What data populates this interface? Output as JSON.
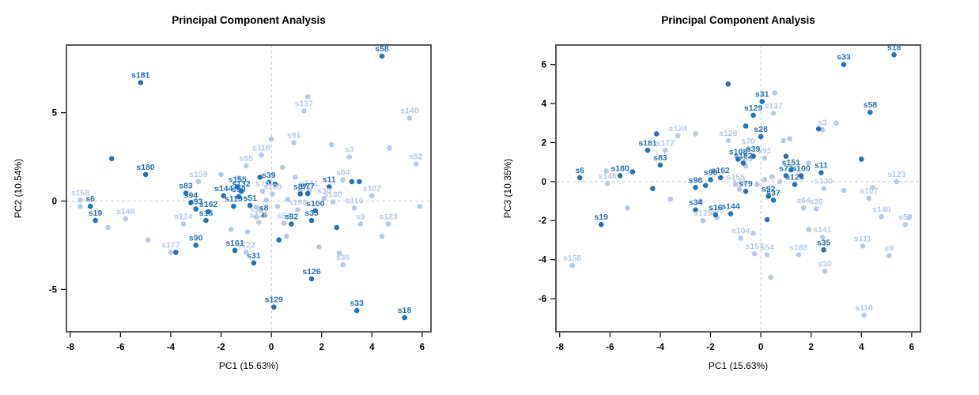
{
  "figure": {
    "background": "#ffffff"
  },
  "chart_data": [
    {
      "type": "scatter",
      "title": "Principal Component Analysis",
      "xlabel": "PC1 (15.63%)",
      "ylabel": "PC2 (10.54%)",
      "xlim": [
        -8.15,
        6.35
      ],
      "ylim": [
        -7.4,
        8.83
      ],
      "xticks": [
        -8,
        -6,
        -4,
        -2,
        0,
        2,
        4,
        6
      ],
      "yticks": [
        -5,
        0,
        5
      ],
      "zero_lines": "dashed at x=0 and y=0",
      "legend": "none",
      "colors": {
        "dark": "#2272b4",
        "light": "#b7c9e7",
        "dash": "#c9c9c9",
        "frame": "#58585a"
      },
      "points": [
        {
          "id": "s58",
          "x": 4.4,
          "y": 8.2,
          "g": "d"
        },
        {
          "id": "s181",
          "x": -5.2,
          "y": 6.7,
          "g": "d"
        },
        {
          "id": "s180",
          "x": -5.0,
          "y": 1.5,
          "g": "d"
        },
        {
          "id": "s83",
          "x": -3.4,
          "y": 0.45,
          "g": "d"
        },
        {
          "id": "s94",
          "x": -3.2,
          "y": -0.1,
          "g": "d"
        },
        {
          "id": "s93",
          "x": -3.0,
          "y": -0.45,
          "g": "d"
        },
        {
          "id": "s6",
          "x": -7.2,
          "y": -0.3,
          "g": "d"
        },
        {
          "id": "s19",
          "x": -7.0,
          "y": -1.1,
          "g": "d"
        },
        {
          "id": "s162",
          "x": -2.5,
          "y": -0.6,
          "g": "d"
        },
        {
          "id": "s16",
          "x": -2.6,
          "y": -1.1,
          "g": "d"
        },
        {
          "id": "s144",
          "x": -1.9,
          "y": 0.3,
          "g": "d"
        },
        {
          "id": "s119",
          "x": -1.5,
          "y": -0.3,
          "g": "d"
        },
        {
          "id": "s51",
          "x": -0.85,
          "y": -0.25,
          "g": "d"
        },
        {
          "id": "s155",
          "x": -1.35,
          "y": 0.8,
          "g": "d"
        },
        {
          "id": "s132",
          "x": -1.2,
          "y": 0.55,
          "g": "d"
        },
        {
          "id": "s99",
          "x": -1.3,
          "y": 0.25,
          "g": "d"
        },
        {
          "id": "s39",
          "x": -0.1,
          "y": 1.05,
          "g": "d"
        },
        {
          "id": "s87",
          "x": 1.15,
          "y": 0.4,
          "g": "d"
        },
        {
          "id": "s77",
          "x": 1.45,
          "y": 0.42,
          "g": "d"
        },
        {
          "id": "s11",
          "x": 2.3,
          "y": 0.8,
          "g": "d"
        },
        {
          "id": "s100",
          "x": 1.75,
          "y": -0.55,
          "g": "d"
        },
        {
          "id": "s35",
          "x": 1.6,
          "y": -1.1,
          "g": "d"
        },
        {
          "id": "s92",
          "x": 0.8,
          "y": -1.3,
          "g": "d"
        },
        {
          "id": "s8",
          "x": -0.3,
          "y": -0.8,
          "g": "d"
        },
        {
          "id": "s90",
          "x": -3.0,
          "y": -2.5,
          "g": "d"
        },
        {
          "id": "s161",
          "x": -1.45,
          "y": -2.8,
          "g": "d"
        },
        {
          "id": "s31",
          "x": -0.7,
          "y": -3.5,
          "g": "d"
        },
        {
          "id": "s126",
          "x": 1.6,
          "y": -4.4,
          "g": "d"
        },
        {
          "id": "s129",
          "x": 0.1,
          "y": -6.0,
          "g": "d"
        },
        {
          "id": "s33",
          "x": 3.4,
          "y": -6.2,
          "g": "d"
        },
        {
          "id": "s18",
          "x": 5.3,
          "y": -6.6,
          "g": "d"
        },
        {
          "x": -6.35,
          "y": 2.4,
          "g": "d"
        },
        {
          "x": 3.2,
          "y": 1.1,
          "g": "d"
        },
        {
          "x": 3.5,
          "y": 1.1,
          "g": "d"
        },
        {
          "x": 0.3,
          "y": -2.2,
          "g": "d"
        },
        {
          "x": -3.8,
          "y": -2.9,
          "g": "d"
        },
        {
          "x": 2.6,
          "y": -1.5,
          "g": "d"
        },
        {
          "x": -0.45,
          "y": 1.35,
          "g": "d"
        },
        {
          "x": 0.15,
          "y": 0.95,
          "g": "d"
        },
        {
          "id": "s158",
          "x": -7.6,
          "y": 0.05,
          "g": "l"
        },
        {
          "id": "s148",
          "x": -5.8,
          "y": -1.0,
          "g": "l"
        },
        {
          "id": "s124",
          "x": -3.5,
          "y": -1.3,
          "g": "l"
        },
        {
          "id": "s177",
          "x": -4.0,
          "y": -2.9,
          "g": "l"
        },
        {
          "id": "s159",
          "x": -2.9,
          "y": 1.1,
          "g": "l"
        },
        {
          "id": "s118",
          "x": -0.4,
          "y": 2.6,
          "g": "l"
        },
        {
          "id": "s85",
          "x": -1.0,
          "y": 2.0,
          "g": "l"
        },
        {
          "id": "s137",
          "x": 1.3,
          "y": 5.1,
          "g": "l"
        },
        {
          "id": "s91",
          "x": 0.9,
          "y": 3.3,
          "g": "l"
        },
        {
          "id": "s140",
          "x": 5.5,
          "y": 4.7,
          "g": "l"
        },
        {
          "id": "s52",
          "x": 5.75,
          "y": 2.1,
          "g": "l"
        },
        {
          "id": "s3",
          "x": 3.1,
          "y": 2.5,
          "g": "l"
        },
        {
          "id": "s64",
          "x": 2.85,
          "y": 1.2,
          "g": "l"
        },
        {
          "id": "s107",
          "x": 4.0,
          "y": 0.3,
          "g": "l"
        },
        {
          "id": "s130",
          "x": 2.45,
          "y": -0.05,
          "g": "l"
        },
        {
          "id": "s30",
          "x": 2.1,
          "y": 0.15,
          "g": "l"
        },
        {
          "id": "s110",
          "x": 3.3,
          "y": -0.4,
          "g": "l"
        },
        {
          "id": "s9",
          "x": 3.55,
          "y": -1.3,
          "g": "l"
        },
        {
          "id": "s123",
          "x": 4.65,
          "y": -1.3,
          "g": "l"
        },
        {
          "id": "s188",
          "x": 1.05,
          "y": -0.5,
          "g": "l"
        },
        {
          "id": "s54",
          "x": 0.5,
          "y": -1.25,
          "g": "l"
        },
        {
          "id": "s128",
          "x": -0.5,
          "y": -1.2,
          "g": "l"
        },
        {
          "id": "s96",
          "x": -0.6,
          "y": -0.9,
          "g": "l"
        },
        {
          "id": "s122",
          "x": -1.0,
          "y": -2.9,
          "g": "l"
        },
        {
          "id": "s36",
          "x": 2.85,
          "y": -3.6,
          "g": "l"
        },
        {
          "id": "s70",
          "x": -0.35,
          "y": 0.55,
          "g": "l"
        },
        {
          "id": "s109",
          "x": 0.05,
          "y": 0.4,
          "g": "l"
        },
        {
          "id": "s141",
          "x": 1.5,
          "y": 0.6,
          "g": "l"
        },
        {
          "x": 1.45,
          "y": 5.9,
          "g": "l"
        },
        {
          "x": 0.0,
          "y": 3.5,
          "g": "l"
        },
        {
          "x": 2.4,
          "y": 3.2,
          "g": "l"
        },
        {
          "x": -2.0,
          "y": 1.5,
          "g": "l"
        },
        {
          "x": -7.6,
          "y": -0.3,
          "g": "l"
        },
        {
          "x": -6.5,
          "y": -1.5,
          "g": "l"
        },
        {
          "x": -4.9,
          "y": -2.2,
          "g": "l"
        },
        {
          "x": 0.45,
          "y": 1.9,
          "g": "l"
        },
        {
          "x": 0.95,
          "y": 1.35,
          "g": "l"
        },
        {
          "x": -0.2,
          "y": 0.05,
          "g": "l"
        },
        {
          "x": 0.25,
          "y": -0.3,
          "g": "l"
        },
        {
          "x": 0.65,
          "y": 0.1,
          "g": "l"
        },
        {
          "x": -0.6,
          "y": -0.35,
          "g": "l"
        },
        {
          "x": -1.6,
          "y": -1.6,
          "g": "l"
        },
        {
          "x": -0.95,
          "y": -1.75,
          "g": "l"
        },
        {
          "x": 0.6,
          "y": -2.0,
          "g": "l"
        },
        {
          "x": 1.9,
          "y": -2.6,
          "g": "l"
        },
        {
          "x": 2.7,
          "y": -2.95,
          "g": "l"
        },
        {
          "x": 4.4,
          "y": -2.0,
          "g": "l"
        },
        {
          "x": 5.9,
          "y": -0.3,
          "g": "l"
        },
        {
          "x": 4.7,
          "y": 3.0,
          "g": "l"
        },
        {
          "x": 1.15,
          "y": 0.6,
          "g": "l"
        },
        {
          "x": -1.3,
          "y": 1.3,
          "g": "l"
        }
      ]
    },
    {
      "type": "scatter",
      "title": "Principal Component Analysis",
      "xlabel": "PC1 (15.63%)",
      "ylabel": "PC3 (10.35%)",
      "xlim": [
        -8.15,
        6.35
      ],
      "ylim": [
        -7.7,
        7.0
      ],
      "xticks": [
        -8,
        -6,
        -4,
        -2,
        0,
        2,
        4,
        6
      ],
      "yticks": [
        -6,
        -4,
        -2,
        0,
        2,
        4,
        6
      ],
      "zero_lines": "dashed at x=0 and y=0",
      "legend": "none",
      "colors": {
        "dark": "#2272b4",
        "light": "#b7c9e7",
        "dash": "#c9c9c9",
        "frame": "#58585a"
      },
      "points": [
        {
          "id": "s18",
          "x": 5.3,
          "y": 6.5,
          "g": "d"
        },
        {
          "id": "s33",
          "x": 3.3,
          "y": 6.0,
          "g": "d"
        },
        {
          "id": "s58",
          "x": 4.35,
          "y": 3.55,
          "g": "d"
        },
        {
          "id": "s31",
          "x": 0.05,
          "y": 4.1,
          "g": "d"
        },
        {
          "id": "s129",
          "x": -0.3,
          "y": 3.4,
          "g": "d"
        },
        {
          "id": "s181",
          "x": -4.5,
          "y": 1.6,
          "g": "d"
        },
        {
          "id": "s83",
          "x": -4.0,
          "y": 0.85,
          "g": "d"
        },
        {
          "id": "s180",
          "x": -5.6,
          "y": 0.3,
          "g": "d"
        },
        {
          "id": "s6",
          "x": -7.2,
          "y": 0.2,
          "g": "d"
        },
        {
          "id": "s19",
          "x": -6.35,
          "y": -2.2,
          "g": "d"
        },
        {
          "id": "s90",
          "x": -2.0,
          "y": 0.1,
          "g": "d"
        },
        {
          "id": "s98",
          "x": -2.6,
          "y": -0.3,
          "g": "d"
        },
        {
          "id": "s162",
          "x": -1.6,
          "y": 0.2,
          "g": "d"
        },
        {
          "id": "s34",
          "x": -2.6,
          "y": -1.45,
          "g": "d"
        },
        {
          "id": "s16",
          "x": -1.8,
          "y": -1.7,
          "g": "d"
        },
        {
          "id": "s144",
          "x": -1.2,
          "y": -1.65,
          "g": "d"
        },
        {
          "id": "s108",
          "x": -0.9,
          "y": 1.15,
          "g": "d"
        },
        {
          "id": "s182",
          "x": -0.7,
          "y": 0.95,
          "g": "d"
        },
        {
          "id": "s39",
          "x": -0.3,
          "y": 1.3,
          "g": "d"
        },
        {
          "id": "s28",
          "x": 0.0,
          "y": 2.3,
          "g": "d"
        },
        {
          "id": "s151",
          "x": 1.2,
          "y": 0.6,
          "g": "d"
        },
        {
          "id": "s77",
          "x": 1.0,
          "y": 0.3,
          "g": "d"
        },
        {
          "id": "s100",
          "x": 1.6,
          "y": 0.3,
          "g": "d"
        },
        {
          "id": "s11",
          "x": 2.4,
          "y": 0.45,
          "g": "d"
        },
        {
          "id": "s126",
          "x": 1.35,
          "y": -0.15,
          "g": "d"
        },
        {
          "id": "s92",
          "x": 0.3,
          "y": -0.75,
          "g": "d"
        },
        {
          "id": "s37",
          "x": 0.5,
          "y": -0.95,
          "g": "d"
        },
        {
          "id": "s79",
          "x": -0.6,
          "y": -0.5,
          "g": "d"
        },
        {
          "id": "s35",
          "x": 2.5,
          "y": -3.5,
          "g": "d"
        },
        {
          "x": -1.3,
          "y": 5.0,
          "g": "d"
        },
        {
          "x": -0.6,
          "y": 2.85,
          "g": "d"
        },
        {
          "x": 2.3,
          "y": 2.7,
          "g": "d"
        },
        {
          "x": 4.0,
          "y": 1.15,
          "g": "d"
        },
        {
          "x": -4.15,
          "y": 2.45,
          "g": "d"
        },
        {
          "x": -5.1,
          "y": 0.5,
          "g": "d"
        },
        {
          "x": -4.3,
          "y": -0.35,
          "g": "d"
        },
        {
          "x": 0.25,
          "y": -1.95,
          "g": "d"
        },
        {
          "x": -2.2,
          "y": -0.2,
          "g": "d"
        },
        {
          "x": 1.0,
          "y": 1.3,
          "g": "d"
        },
        {
          "id": "s137",
          "x": 0.5,
          "y": 3.5,
          "g": "l"
        },
        {
          "id": "s124",
          "x": -3.3,
          "y": 2.35,
          "g": "l"
        },
        {
          "id": "s177",
          "x": -3.8,
          "y": 1.6,
          "g": "l"
        },
        {
          "id": "s148",
          "x": -6.1,
          "y": -0.1,
          "g": "l"
        },
        {
          "id": "s158",
          "x": -7.5,
          "y": -4.3,
          "g": "l"
        },
        {
          "id": "s125",
          "x": -2.3,
          "y": -2.0,
          "g": "l"
        },
        {
          "id": "s66",
          "x": -1.75,
          "y": -1.85,
          "g": "l"
        },
        {
          "id": "s104",
          "x": -0.8,
          "y": -2.9,
          "g": "l"
        },
        {
          "id": "s157",
          "x": -0.25,
          "y": -3.7,
          "g": "l"
        },
        {
          "id": "s54",
          "x": 0.25,
          "y": -3.75,
          "g": "l"
        },
        {
          "id": "s188",
          "x": 1.5,
          "y": -3.75,
          "g": "l"
        },
        {
          "id": "s30",
          "x": 2.55,
          "y": -4.6,
          "g": "l"
        },
        {
          "id": "s141",
          "x": 2.45,
          "y": -2.85,
          "g": "l"
        },
        {
          "id": "s111",
          "x": 4.05,
          "y": -3.3,
          "g": "l"
        },
        {
          "id": "s9",
          "x": 5.1,
          "y": -3.8,
          "g": "l"
        },
        {
          "id": "s110",
          "x": 4.1,
          "y": -6.85,
          "g": "l"
        },
        {
          "id": "s123",
          "x": 5.4,
          "y": 0.0,
          "g": "l"
        },
        {
          "id": "s130",
          "x": 2.5,
          "y": -0.35,
          "g": "l"
        },
        {
          "id": "s107",
          "x": 4.3,
          "y": -0.85,
          "g": "l"
        },
        {
          "id": "s36",
          "x": 2.2,
          "y": -1.4,
          "g": "l"
        },
        {
          "id": "s64",
          "x": 1.7,
          "y": -1.35,
          "g": "l"
        },
        {
          "id": "s52",
          "x": 5.75,
          "y": -2.2,
          "g": "l"
        },
        {
          "id": "s140",
          "x": 4.8,
          "y": -1.8,
          "g": "l"
        },
        {
          "id": "s3",
          "x": 2.45,
          "y": 2.65,
          "g": "l"
        },
        {
          "id": "s91",
          "x": 0.15,
          "y": 1.2,
          "g": "l"
        },
        {
          "id": "s85",
          "x": -0.6,
          "y": 0.8,
          "g": "l"
        },
        {
          "id": "s70",
          "x": -0.5,
          "y": 1.7,
          "g": "l"
        },
        {
          "id": "s128",
          "x": -1.3,
          "y": 2.1,
          "g": "l"
        },
        {
          "id": "s155",
          "x": -1.0,
          "y": -0.15,
          "g": "l"
        },
        {
          "id": "s40",
          "x": -0.85,
          "y": -0.4,
          "g": "l"
        },
        {
          "x": -6.15,
          "y": 0.55,
          "g": "l"
        },
        {
          "x": -2.6,
          "y": 2.45,
          "g": "l"
        },
        {
          "x": 0.9,
          "y": 2.1,
          "g": "l"
        },
        {
          "x": 1.15,
          "y": 2.2,
          "g": "l"
        },
        {
          "x": 3.0,
          "y": 3.0,
          "g": "l"
        },
        {
          "x": 0.55,
          "y": 4.55,
          "g": "l"
        },
        {
          "x": 5.9,
          "y": -1.85,
          "g": "l"
        },
        {
          "x": 3.3,
          "y": -0.45,
          "g": "l"
        },
        {
          "x": 1.9,
          "y": -2.45,
          "g": "l"
        },
        {
          "x": -0.3,
          "y": -2.65,
          "g": "l"
        },
        {
          "x": 0.4,
          "y": -4.9,
          "g": "l"
        },
        {
          "x": -3.6,
          "y": -0.9,
          "g": "l"
        },
        {
          "x": -5.3,
          "y": -1.35,
          "g": "l"
        },
        {
          "x": 0.15,
          "y": 0.1,
          "g": "l"
        },
        {
          "x": 0.45,
          "y": 0.25,
          "g": "l"
        },
        {
          "x": -0.15,
          "y": -0.15,
          "g": "l"
        },
        {
          "x": 0.75,
          "y": 0.0,
          "g": "l"
        },
        {
          "x": 1.9,
          "y": 0.95,
          "g": "l"
        },
        {
          "x": -2.4,
          "y": -1.0,
          "g": "l"
        },
        {
          "x": 4.45,
          "y": -0.3,
          "g": "l"
        }
      ]
    }
  ]
}
